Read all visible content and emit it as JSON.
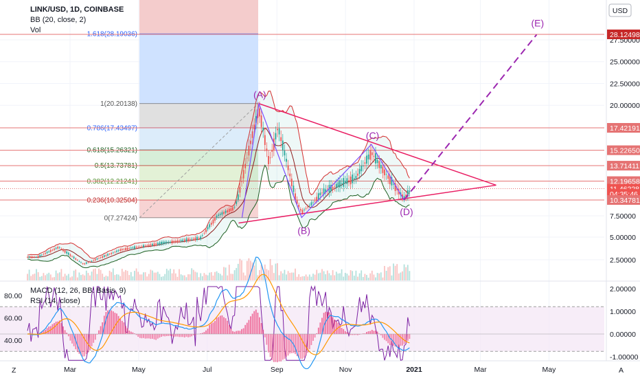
{
  "header": {
    "symbol_line": "LINK/USD, 1D, COINBASE",
    "bb_line": "BB (20, close, 2)",
    "vol_line": "Vol",
    "currency_button": "USD",
    "macd_line": "MACD (12, 26, BB: Basis, 9)",
    "rsi_line": "RSI (14, close)",
    "scale_toggle_left": "Z",
    "scale_toggle_right": "A"
  },
  "colors": {
    "candle_up": "#26a69a",
    "candle_down": "#ef5350",
    "bb_upper": "#d32f2f",
    "bb_basis": "#8d1b1b",
    "bb_lower": "#1b5e20",
    "triangle": "#e91e63",
    "wave": "#9c27b0",
    "fib_line": "#e57373",
    "rsi_band": "#f3e5f5",
    "macd": "#2196f3",
    "signal": "#ff9800",
    "price_tag": "#e57373",
    "current_tag": "#ef5350"
  },
  "fib_levels": [
    {
      "label": "1.618(28.19036)",
      "price": 28.19036,
      "color": "#2962ff"
    },
    {
      "label": "1(20.20138)",
      "price": 20.20138,
      "color": "#555555"
    },
    {
      "label": "0.786(17.43497)",
      "price": 17.43497,
      "color": "#2962ff"
    },
    {
      "label": "0.618(15.26321)",
      "price": 15.26321,
      "color": "#1b5e20"
    },
    {
      "label": "0.5(13.73781)",
      "price": 13.73781,
      "color": "#33691e"
    },
    {
      "label": "0.382(12.21241)",
      "price": 12.21241,
      "color": "#558b2f"
    },
    {
      "label": "0.236(10.32504)",
      "price": 10.32504,
      "color": "#b71c1c"
    },
    {
      "label": "0(7.27424)",
      "price": 7.27424,
      "color": "#555555"
    }
  ],
  "price_tags": [
    {
      "text": "28.12498",
      "price": 28.12498
    },
    {
      "text": "17.42191",
      "price": 17.42191
    },
    {
      "text": "15.22650",
      "price": 15.2265
    },
    {
      "text": "13.71411",
      "price": 13.71411
    },
    {
      "text": "12.19658",
      "price": 12.19658
    },
    {
      "text": "11.46228",
      "price": 11.46228
    },
    {
      "text": "04:35:46",
      "price": 10.95
    },
    {
      "text": "10.34781",
      "price": 10.34781
    }
  ],
  "wave_labels": [
    {
      "text": "(A)",
      "date": "2020-08-16",
      "price": 20.2
    },
    {
      "text": "(B)",
      "date": "2020-09-23",
      "price": 7.3
    },
    {
      "text": "(C)",
      "date": "2020-11-24",
      "price": 15.8
    },
    {
      "text": "(D)",
      "date": "2020-12-23",
      "price": 10.35
    },
    {
      "text": "(E)",
      "date": "2021-04-20",
      "price": 28.1
    }
  ],
  "chart_data": {
    "type": "candlestick",
    "x_axis_labels": [
      "Mar",
      "May",
      "Jul",
      "Sep",
      "Nov",
      "2021",
      "Mar",
      "May"
    ],
    "y_axis_labels": [
      "27.50000",
      "25.00000",
      "22.50000",
      "20.00000",
      "7.50000",
      "5.00000",
      "2.50000"
    ],
    "ylim": [
      0,
      30
    ],
    "price_pivots": [
      {
        "date": "2020-02-01",
        "price": 2.8
      },
      {
        "date": "2020-02-20",
        "price": 3.9
      },
      {
        "date": "2020-03-13",
        "price": 2.0
      },
      {
        "date": "2020-04-15",
        "price": 3.6
      },
      {
        "date": "2020-05-20",
        "price": 4.3
      },
      {
        "date": "2020-06-25",
        "price": 4.9
      },
      {
        "date": "2020-07-10",
        "price": 7.5
      },
      {
        "date": "2020-07-25",
        "price": 8.9
      },
      {
        "date": "2020-08-16",
        "price": 19.6
      },
      {
        "date": "2020-08-25",
        "price": 14.0
      },
      {
        "date": "2020-09-02",
        "price": 17.5
      },
      {
        "date": "2020-09-23",
        "price": 8.2
      },
      {
        "date": "2020-10-10",
        "price": 11.0
      },
      {
        "date": "2020-10-25",
        "price": 11.8
      },
      {
        "date": "2020-11-10",
        "price": 12.5
      },
      {
        "date": "2020-11-24",
        "price": 15.0
      },
      {
        "date": "2020-12-05",
        "price": 13.2
      },
      {
        "date": "2020-12-23",
        "price": 10.5
      },
      {
        "date": "2020-12-30",
        "price": 11.46
      }
    ],
    "triangle_upper": [
      {
        "date": "2020-08-16",
        "price": 20.2
      },
      {
        "date": "2021-03-15",
        "price": 11.8
      }
    ],
    "triangle_lower": [
      {
        "date": "2020-08-01",
        "price": 7.3
      },
      {
        "date": "2021-03-15",
        "price": 11.8
      }
    ],
    "projection": [
      {
        "date": "2020-12-23",
        "price": 10.35
      },
      {
        "date": "2021-04-20",
        "price": 28.1
      }
    ],
    "rsi_panel": {
      "title": "RSI (14, close)",
      "y_axis_labels": [
        "80.00",
        "60.00",
        "40.00"
      ],
      "overbought": 70,
      "oversold": 30
    },
    "macd_panel": {
      "title": "MACD (12, 26, BB: Basis, 9)",
      "y_axis_labels": [
        "2.00000",
        "1.00000",
        "0.00000",
        "-1.00000"
      ]
    }
  }
}
